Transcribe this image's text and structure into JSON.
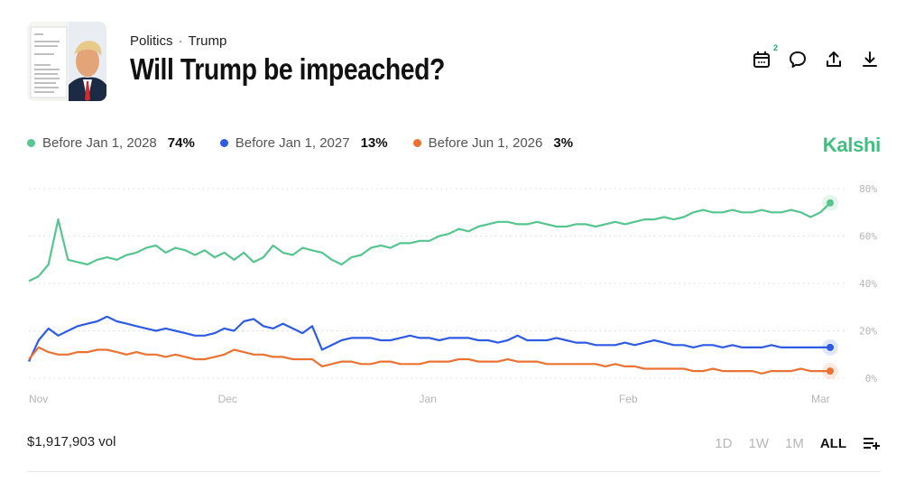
{
  "header": {
    "breadcrumb": [
      "Politics",
      "Trump"
    ],
    "breadcrumb_sep": "·",
    "title": "Will Trump be impeached?",
    "calendar_badge": "2",
    "icons": [
      "calendar-icon",
      "comment-icon",
      "share-icon",
      "download-icon"
    ]
  },
  "brand": "Kalshi",
  "legend": [
    {
      "label": "Before Jan 1, 2028",
      "value": "74%",
      "color": "#57c58f"
    },
    {
      "label": "Before Jan 1, 2027",
      "value": "13%",
      "color": "#2f5be3"
    },
    {
      "label": "Before Jun 1, 2026",
      "value": "3%",
      "color": "#ea7333"
    }
  ],
  "footer": {
    "volume": "$1,917,903 vol",
    "ranges": [
      "1D",
      "1W",
      "1M",
      "ALL"
    ],
    "active_range": "ALL"
  },
  "chart_data": {
    "type": "line",
    "x_ticks": [
      "Nov",
      "Dec",
      "Jan",
      "Feb",
      "Mar"
    ],
    "y_ticks": [
      "0%",
      "20%",
      "40%",
      "60%",
      "80%"
    ],
    "ylim": [
      0,
      80
    ],
    "grid": true,
    "series": [
      {
        "name": "Before Jan 1, 2028",
        "color": "#57c58f",
        "values": [
          41,
          43,
          48,
          67,
          50,
          49,
          48,
          50,
          51,
          50,
          52,
          53,
          55,
          56,
          53,
          55,
          54,
          52,
          54,
          51,
          53,
          50,
          53,
          49,
          51,
          56,
          53,
          52,
          55,
          54,
          53,
          50,
          48,
          51,
          52,
          55,
          56,
          55,
          57,
          57,
          58,
          58,
          60,
          61,
          63,
          62,
          64,
          65,
          66,
          66,
          65,
          65,
          66,
          65,
          64,
          64,
          65,
          65,
          64,
          65,
          66,
          65,
          66,
          67,
          67,
          68,
          67,
          68,
          70,
          71,
          70,
          70,
          71,
          70,
          70,
          71,
          70,
          70,
          71,
          70,
          68,
          70,
          74
        ]
      },
      {
        "name": "Before Jan 1, 2027",
        "color": "#2f5be3",
        "values": [
          7,
          16,
          21,
          18,
          20,
          22,
          23,
          24,
          26,
          24,
          23,
          22,
          21,
          20,
          21,
          20,
          19,
          18,
          18,
          19,
          21,
          20,
          24,
          25,
          22,
          21,
          23,
          21,
          19,
          22,
          12,
          14,
          16,
          17,
          17,
          17,
          16,
          16,
          17,
          18,
          17,
          17,
          16,
          17,
          17,
          17,
          16,
          16,
          15,
          16,
          18,
          16,
          16,
          16,
          17,
          16,
          15,
          15,
          14,
          14,
          14,
          15,
          14,
          15,
          16,
          15,
          14,
          14,
          13,
          14,
          14,
          13,
          14,
          13,
          13,
          13,
          14,
          13,
          13,
          13,
          13,
          13,
          13
        ]
      },
      {
        "name": "Before Jun 1, 2026",
        "color": "#ea7333",
        "values": [
          8,
          13,
          11,
          10,
          10,
          11,
          11,
          12,
          12,
          11,
          10,
          11,
          10,
          10,
          9,
          10,
          9,
          8,
          8,
          9,
          10,
          12,
          11,
          10,
          10,
          9,
          9,
          8,
          8,
          8,
          5,
          6,
          7,
          7,
          6,
          6,
          7,
          7,
          6,
          6,
          6,
          7,
          7,
          7,
          8,
          8,
          7,
          7,
          7,
          8,
          7,
          7,
          7,
          6,
          6,
          6,
          6,
          6,
          6,
          5,
          6,
          5,
          5,
          4,
          4,
          4,
          4,
          4,
          3,
          3,
          4,
          3,
          3,
          3,
          3,
          2,
          3,
          3,
          3,
          4,
          3,
          3,
          3
        ]
      }
    ]
  }
}
